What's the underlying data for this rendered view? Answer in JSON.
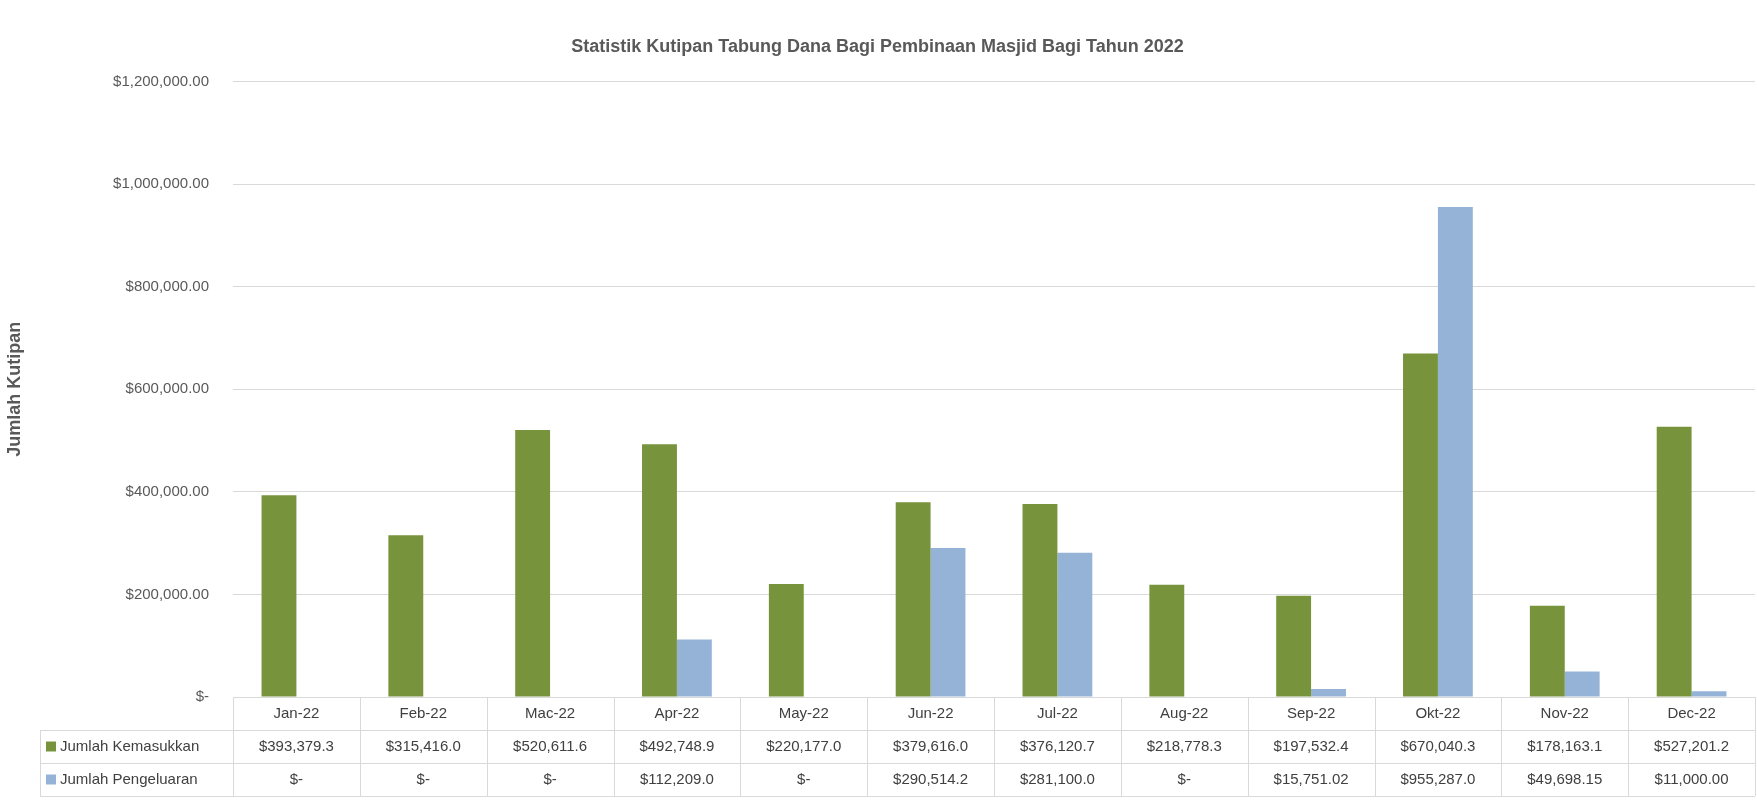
{
  "chart_data": {
    "type": "bar",
    "title": "Statistik Kutipan Tabung Dana Bagi Pembinaan Masjid Bagi Tahun 2022",
    "ylabel": "Jumlah Kutipan",
    "categories": [
      "Jan-22",
      "Feb-22",
      "Mac-22",
      "Apr-22",
      "May-22",
      "Jun-22",
      "Jul-22",
      "Aug-22",
      "Sep-22",
      "Okt-22",
      "Nov-22",
      "Dec-22"
    ],
    "series": [
      {
        "name": "Jumlah Kemasukkan",
        "color": "#77933c",
        "values": [
          393379.3,
          315416.0,
          520611.6,
          492748.9,
          220177.0,
          379616.0,
          376120.7,
          218778.3,
          197532.4,
          670040.3,
          178163.1,
          527201.2
        ],
        "value_labels": [
          "$393,379.3",
          "$315,416.0",
          "$520,611.6",
          "$492,748.9",
          "$220,177.0",
          "$379,616.0",
          "$376,120.7",
          "$218,778.3",
          "$197,532.4",
          "$670,040.3",
          "$178,163.1",
          "$527,201.2"
        ]
      },
      {
        "name": "Jumlah Pengeluaran",
        "color": "#95b3d7",
        "values": [
          0,
          0,
          0,
          112209.0,
          0,
          290514.2,
          281100.0,
          0,
          15751.02,
          955287.0,
          49698.15,
          11000.0
        ],
        "value_labels": [
          "$-",
          "$-",
          "$-",
          "$112,209.0",
          "$-",
          "$290,514.2",
          "$281,100.0",
          "$-",
          "$15,751.02",
          "$955,287.0",
          "$49,698.15",
          "$11,000.00"
        ]
      }
    ],
    "ylim": [
      0,
      1200000
    ],
    "yticks": [
      {
        "value": 0,
        "label": "$-"
      },
      {
        "value": 200000,
        "label": "$200,000.00"
      },
      {
        "value": 400000,
        "label": "$400,000.00"
      },
      {
        "value": 600000,
        "label": "$600,000.00"
      },
      {
        "value": 800000,
        "label": "$800,000.00"
      },
      {
        "value": 1000000,
        "label": "$1,000,000.00"
      },
      {
        "value": 1200000,
        "label": "$1,200,000.00"
      }
    ],
    "grid": "y",
    "legend": "bottom"
  }
}
